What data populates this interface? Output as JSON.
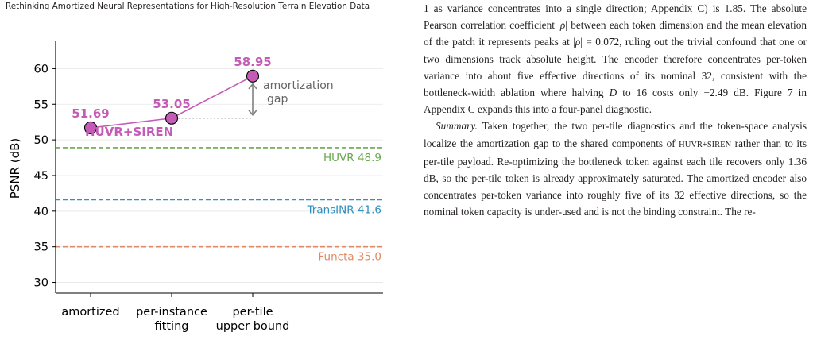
{
  "running_head": "Rethinking Amortized Neural Representations for High-Resolution Terrain Elevation Data",
  "chart_data": {
    "type": "line",
    "ylabel": "PSNR (dB)",
    "xlabel": "",
    "ylim": [
      28.5,
      63.5
    ],
    "yticks": [
      "30",
      "35",
      "40",
      "45",
      "50",
      "55",
      "60"
    ],
    "categories": [
      "amortized",
      "per-instance fitting",
      "per-tile upper bound"
    ],
    "category_lines": [
      [
        "amortized"
      ],
      [
        "per-instance",
        "fitting"
      ],
      [
        "per-tile",
        "upper bound"
      ]
    ],
    "series": [
      {
        "name": "HUVR+SIREN",
        "values": [
          51.69,
          53.05,
          58.95
        ],
        "labels": [
          "51.69",
          "53.05",
          "58.95"
        ],
        "color": "#c45bb6"
      }
    ],
    "reference_lines": [
      {
        "label": "HUVR 48.9",
        "value": 48.9,
        "color": "#6aa84f"
      },
      {
        "label": "TransINR 41.6",
        "value": 41.6,
        "color": "#2e8fc0"
      },
      {
        "label": "Functa 35.0",
        "value": 35.0,
        "color": "#e08a63"
      }
    ],
    "annotation": {
      "lines": [
        "amortization",
        "gap"
      ],
      "from": 53.05,
      "to": 58.95,
      "color": "#808080"
    },
    "grid": true
  },
  "text": {
    "para1": [
      {
        "t": "1 as variance concentrates into a single direction; Appendix C) is 1.85. The absolute Pearson correlation coefficient |"
      },
      {
        "t": "ρ",
        "it": true
      },
      {
        "t": "| between each token dimension and the mean elevation of the patch it represents peaks at |"
      },
      {
        "t": "ρ",
        "it": true
      },
      {
        "t": "| = 0.072, ruling out the trivial confound that one or two dimensions track absolute height. The encoder therefore concentrates per-token variance into about five effective directions of its nominal 32, consistent with the bottleneck-width ablation where halving "
      },
      {
        "t": "D",
        "it": true
      },
      {
        "t": " to 16 costs only −2.49 dB. Figure 7 in Appendix C expands this into a four-panel diagnostic."
      }
    ],
    "para2_head": "Summary.",
    "para2_a": " Taken together, the two per-tile diagnostics and the token-space analysis localize the amortization gap to the shared components of ",
    "para2_sc": "HUVR+SIREN",
    "para2_b": " rather than to its per-tile payload. Re-optimizing the bottleneck token against each tile recovers only 1.36 dB, so the per-tile token is already approximately saturated. The amortized encoder also concentrates per-token variance into roughly five of its 32 effective directions, so the nominal token capacity is under-used and is not the binding constraint. The re-"
  }
}
